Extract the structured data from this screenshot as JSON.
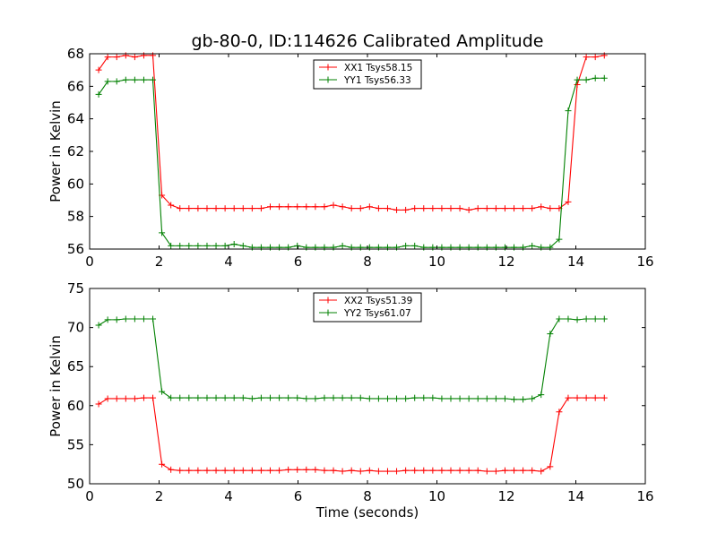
{
  "figure": {
    "title": "gb-80-0, ID:114626 Calibrated Amplitude",
    "background": "#ffffff"
  },
  "colors": {
    "red": "#ff0000",
    "green": "#008000",
    "axes": "#000000"
  },
  "chart_data": [
    {
      "type": "line",
      "title": "gb-80-0, ID:114626 Calibrated Amplitude",
      "xlabel": "",
      "ylabel": "Power in Kelvin",
      "xlim": [
        0,
        16
      ],
      "ylim": [
        56,
        68
      ],
      "xticks": [
        "0",
        "2",
        "4",
        "6",
        "8",
        "10",
        "12",
        "14",
        "16"
      ],
      "yticks": [
        "56",
        "58",
        "60",
        "62",
        "64",
        "66",
        "68"
      ],
      "grid": false,
      "legend_position": "top-center",
      "x": [
        0.26,
        0.52,
        0.78,
        1.04,
        1.3,
        1.56,
        1.82,
        2.08,
        2.34,
        2.6,
        2.86,
        3.12,
        3.38,
        3.64,
        3.9,
        4.16,
        4.42,
        4.68,
        4.94,
        5.2,
        5.46,
        5.72,
        5.98,
        6.24,
        6.5,
        6.76,
        7.02,
        7.28,
        7.54,
        7.8,
        8.06,
        8.32,
        8.58,
        8.84,
        9.1,
        9.36,
        9.62,
        9.88,
        10.14,
        10.4,
        10.66,
        10.92,
        11.18,
        11.44,
        11.7,
        11.96,
        12.22,
        12.48,
        12.74,
        13.0,
        13.26,
        13.52,
        13.78,
        14.04,
        14.3,
        14.56,
        14.82
      ],
      "series": [
        {
          "name": "XX1 Tsys58.15",
          "color": "#ff0000",
          "values": [
            67.0,
            67.8,
            67.8,
            67.9,
            67.8,
            67.9,
            67.9,
            59.3,
            58.7,
            58.5,
            58.5,
            58.5,
            58.5,
            58.5,
            58.5,
            58.5,
            58.5,
            58.5,
            58.5,
            58.6,
            58.6,
            58.6,
            58.6,
            58.6,
            58.6,
            58.6,
            58.7,
            58.6,
            58.5,
            58.5,
            58.6,
            58.5,
            58.5,
            58.4,
            58.4,
            58.5,
            58.5,
            58.5,
            58.5,
            58.5,
            58.5,
            58.4,
            58.5,
            58.5,
            58.5,
            58.5,
            58.5,
            58.5,
            58.5,
            58.6,
            58.5,
            58.5,
            58.9,
            66.1,
            67.8,
            67.8,
            67.9
          ]
        },
        {
          "name": "YY1 Tsys56.33",
          "color": "#008000",
          "values": [
            65.5,
            66.3,
            66.3,
            66.4,
            66.4,
            66.4,
            66.4,
            57.0,
            56.2,
            56.2,
            56.2,
            56.2,
            56.2,
            56.2,
            56.2,
            56.3,
            56.2,
            56.1,
            56.1,
            56.1,
            56.1,
            56.1,
            56.2,
            56.1,
            56.1,
            56.1,
            56.1,
            56.2,
            56.1,
            56.1,
            56.1,
            56.1,
            56.1,
            56.1,
            56.2,
            56.2,
            56.1,
            56.1,
            56.1,
            56.1,
            56.1,
            56.1,
            56.1,
            56.1,
            56.1,
            56.1,
            56.1,
            56.1,
            56.2,
            56.1,
            56.1,
            56.6,
            64.5,
            66.4,
            66.4,
            66.5,
            66.5
          ]
        }
      ]
    },
    {
      "type": "line",
      "title": "",
      "xlabel": "Time (seconds)",
      "ylabel": "Power in Kelvin",
      "xlim": [
        0,
        16
      ],
      "ylim": [
        50,
        75
      ],
      "xticks": [
        "0",
        "2",
        "4",
        "6",
        "8",
        "10",
        "12",
        "14",
        "16"
      ],
      "yticks": [
        "50",
        "55",
        "60",
        "65",
        "70",
        "75"
      ],
      "grid": false,
      "legend_position": "top-center",
      "x": [
        0.26,
        0.52,
        0.78,
        1.04,
        1.3,
        1.56,
        1.82,
        2.08,
        2.34,
        2.6,
        2.86,
        3.12,
        3.38,
        3.64,
        3.9,
        4.16,
        4.42,
        4.68,
        4.94,
        5.2,
        5.46,
        5.72,
        5.98,
        6.24,
        6.5,
        6.76,
        7.02,
        7.28,
        7.54,
        7.8,
        8.06,
        8.32,
        8.58,
        8.84,
        9.1,
        9.36,
        9.62,
        9.88,
        10.14,
        10.4,
        10.66,
        10.92,
        11.18,
        11.44,
        11.7,
        11.96,
        12.22,
        12.48,
        12.74,
        13.0,
        13.26,
        13.52,
        13.78,
        14.04,
        14.3,
        14.56,
        14.82
      ],
      "series": [
        {
          "name": "XX2 Tsys51.39",
          "color": "#ff0000",
          "values": [
            60.2,
            60.9,
            60.9,
            60.9,
            60.9,
            61.0,
            61.0,
            52.5,
            51.8,
            51.7,
            51.7,
            51.7,
            51.7,
            51.7,
            51.7,
            51.7,
            51.7,
            51.7,
            51.7,
            51.7,
            51.7,
            51.8,
            51.8,
            51.8,
            51.8,
            51.7,
            51.7,
            51.6,
            51.7,
            51.6,
            51.7,
            51.6,
            51.6,
            51.6,
            51.7,
            51.7,
            51.7,
            51.7,
            51.7,
            51.7,
            51.7,
            51.7,
            51.7,
            51.6,
            51.6,
            51.7,
            51.7,
            51.7,
            51.7,
            51.6,
            52.2,
            59.2,
            61.0,
            61.0,
            61.0,
            61.0,
            61.0
          ]
        },
        {
          "name": "YY2 Tsys61.07",
          "color": "#008000",
          "values": [
            70.3,
            71.0,
            71.0,
            71.1,
            71.1,
            71.1,
            71.1,
            61.8,
            61.0,
            61.0,
            61.0,
            61.0,
            61.0,
            61.0,
            61.0,
            61.0,
            61.0,
            60.9,
            61.0,
            61.0,
            61.0,
            61.0,
            61.0,
            60.9,
            60.9,
            61.0,
            61.0,
            61.0,
            61.0,
            61.0,
            60.9,
            60.9,
            60.9,
            60.9,
            60.9,
            61.0,
            61.0,
            61.0,
            60.9,
            60.9,
            60.9,
            60.9,
            60.9,
            60.9,
            60.9,
            60.9,
            60.8,
            60.8,
            60.9,
            61.4,
            69.2,
            71.1,
            71.1,
            71.0,
            71.1,
            71.1,
            71.1
          ]
        }
      ]
    }
  ]
}
